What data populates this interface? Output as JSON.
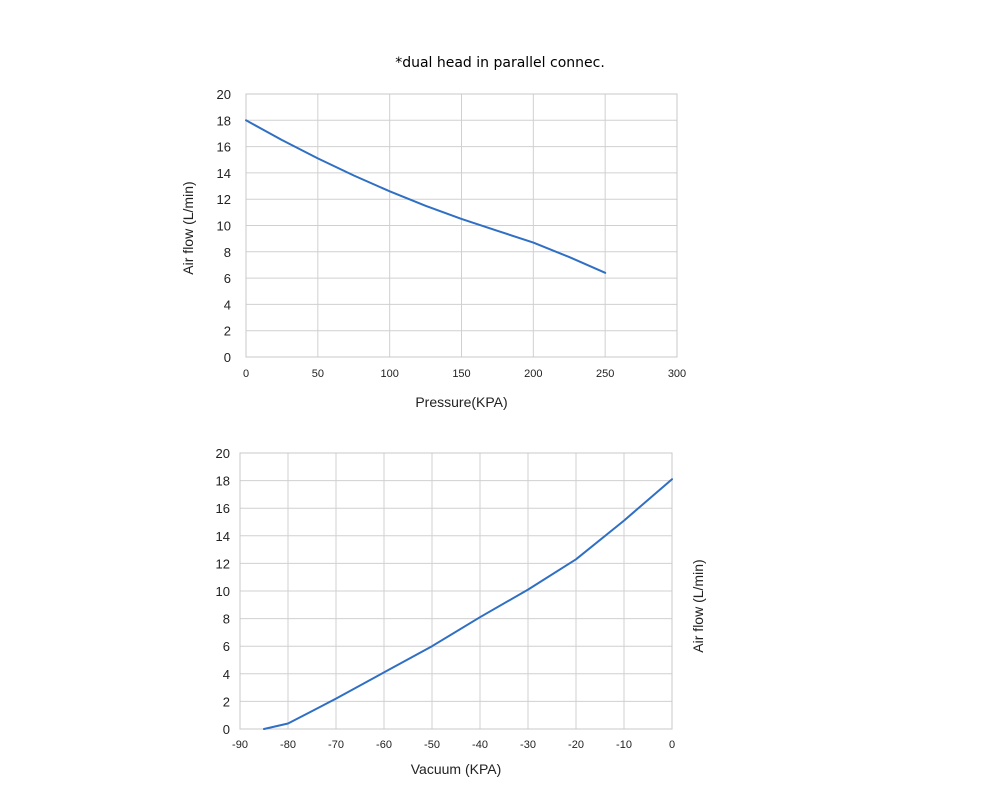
{
  "page": {
    "title": "*dual head in parallel connec."
  },
  "colors": {
    "line": "#2f6fc4",
    "grid": "#d0d0d0"
  },
  "chart_data": [
    {
      "type": "line",
      "title": "",
      "xlabel": "Pressure(KPA)",
      "ylabel": "Air flow (L/min)",
      "ylabel_side": "left",
      "xlim": [
        0,
        300
      ],
      "ylim": [
        0,
        20
      ],
      "xticks": [
        0,
        50,
        100,
        150,
        200,
        250,
        300
      ],
      "yticks": [
        0,
        2,
        4,
        6,
        8,
        10,
        12,
        14,
        16,
        18,
        20
      ],
      "grid": true,
      "series": [
        {
          "x": [
            0,
            25,
            50,
            75,
            100,
            125,
            150,
            175,
            200,
            225,
            250
          ],
          "y": [
            18.0,
            16.5,
            15.1,
            13.8,
            12.6,
            11.5,
            10.5,
            9.6,
            8.7,
            7.6,
            6.4
          ]
        }
      ]
    },
    {
      "type": "line",
      "title": "",
      "xlabel": "Vacuum (KPA)",
      "ylabel": "Air flow (L/min)",
      "ylabel_side": "right",
      "xlim": [
        -90,
        0
      ],
      "ylim": [
        0,
        20
      ],
      "xticks": [
        -90,
        -80,
        -70,
        -60,
        -50,
        -40,
        -30,
        -20,
        -10,
        0
      ],
      "yticks": [
        0,
        2,
        4,
        6,
        8,
        10,
        12,
        14,
        16,
        18,
        20
      ],
      "grid": true,
      "series": [
        {
          "x": [
            -85,
            -80,
            -75,
            -70,
            -60,
            -50,
            -40,
            -30,
            -20,
            -10,
            0
          ],
          "y": [
            0.0,
            0.4,
            1.3,
            2.2,
            4.1,
            6.0,
            8.1,
            10.1,
            12.3,
            15.1,
            18.1
          ]
        }
      ]
    }
  ]
}
